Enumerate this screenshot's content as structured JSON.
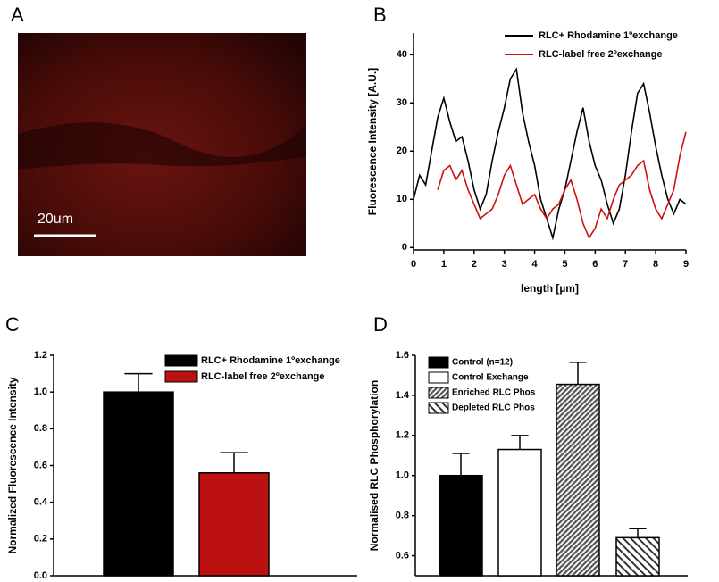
{
  "image": {
    "panel": "A",
    "scale_label": "20um"
  },
  "chart_data": [
    {
      "type": "line",
      "panel": "B",
      "xlabel": "length [µm]",
      "ylabel": "Fluorescence Intensity [A.U.]",
      "x": [
        0,
        0.2,
        0.4,
        0.6,
        0.8,
        1,
        1.2,
        1.4,
        1.6,
        1.8,
        2,
        2.2,
        2.4,
        2.6,
        2.8,
        3,
        3.2,
        3.4,
        3.6,
        3.8,
        4,
        4.2,
        4.4,
        4.6,
        4.8,
        5,
        5.2,
        5.4,
        5.6,
        5.8,
        6,
        6.2,
        6.4,
        6.6,
        6.8,
        7,
        7.2,
        7.4,
        7.6,
        7.8,
        8,
        8.2,
        8.4,
        8.6,
        8.8,
        9
      ],
      "xlim": [
        0,
        9
      ],
      "xticks": [
        0,
        1,
        2,
        3,
        4,
        5,
        6,
        7,
        8,
        9
      ],
      "ylim": [
        -0.5,
        44.5
      ],
      "yticks": [
        0,
        10,
        20,
        30,
        40
      ],
      "series": [
        {
          "name": "RLC+ Rhodamine 1ºexchange",
          "color": "#000000",
          "values": [
            10,
            15,
            13,
            20,
            27,
            31,
            26,
            22,
            23,
            18,
            12,
            8,
            11,
            18,
            24,
            29,
            35,
            37,
            28,
            22,
            17,
            10,
            6,
            2,
            8,
            12,
            18,
            24,
            29,
            22,
            17,
            14,
            9,
            5,
            8,
            15,
            24,
            32,
            34,
            28,
            21,
            15,
            10,
            7,
            10,
            9
          ]
        },
        {
          "name": "RLC-label free 2ºexchange",
          "color": "#cc1111",
          "values": [
            null,
            null,
            null,
            null,
            12,
            16,
            17,
            14,
            16,
            12,
            9,
            6,
            7,
            8,
            11,
            15,
            17,
            13,
            9,
            10,
            11,
            8,
            6,
            8,
            9,
            12,
            14,
            10,
            5,
            2,
            4,
            8,
            6,
            10,
            13,
            14,
            15,
            17,
            18,
            12,
            8,
            6,
            9,
            12,
            19,
            24
          ]
        }
      ]
    },
    {
      "type": "bar",
      "panel": "C",
      "ylabel": "Normalized Fluorescence Intensity",
      "ylim": [
        0,
        1.2
      ],
      "yticks": [
        {
          "value": 0,
          "label": "0.0"
        },
        0.2,
        0.4,
        0.6,
        0.8,
        {
          "value": 1,
          "label": "1.0"
        },
        1.2
      ],
      "series": [
        {
          "name": "RLC+ Rhodamine 1ºexchange",
          "color": "#000000",
          "values": [
            1.0
          ],
          "errors": [
            0.1
          ]
        },
        {
          "name": "RLC-label free 2ºexchange",
          "color": "#bb1111",
          "values": [
            0.56
          ],
          "errors": [
            0.11
          ]
        }
      ]
    },
    {
      "type": "bar",
      "panel": "D",
      "ylabel": "Normalised RLC Phosphorylation",
      "ylim": [
        0.5,
        1.6
      ],
      "yticks": [
        0.6,
        0.8,
        {
          "value": 1,
          "label": "1.0"
        },
        1.2,
        1.4,
        1.6
      ],
      "series": [
        {
          "name": "Control (n=12)",
          "color": "#000000",
          "values": [
            1.0
          ],
          "errors": [
            0.11
          ]
        },
        {
          "name": "Control Exchange",
          "color": "#ffffff",
          "values": [
            1.13
          ],
          "errors": [
            0.07
          ]
        },
        {
          "name": "Enriched RLC Phos",
          "color": "#555555",
          "pattern": "dense-hatch",
          "values": [
            1.455
          ],
          "errors": [
            0.11
          ]
        },
        {
          "name": "Depleted RLC Phos",
          "color": "#333333",
          "pattern": "hatch",
          "values": [
            0.69
          ],
          "errors": [
            0.045
          ]
        }
      ]
    }
  ]
}
